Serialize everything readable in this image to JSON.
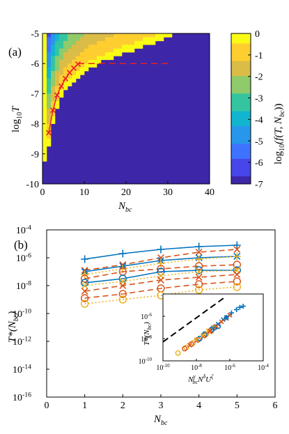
{
  "chart_data": [
    {
      "panel": "a",
      "type": "heatmap",
      "panel_label": "(a)",
      "xlabel": "N",
      "xlabel_sub": "bc",
      "ylabel": "log",
      "ylabel_sub": "10",
      "ylabel_var": "T",
      "xlim": [
        0,
        40
      ],
      "ylim": [
        -10,
        -5
      ],
      "xticks": [
        "0",
        "10",
        "20",
        "30",
        "40"
      ],
      "yticks": [
        "-5",
        "-6",
        "-7",
        "-8",
        "-9",
        "-10"
      ],
      "colorbar": {
        "label": "log",
        "label_sub": "10",
        "label_expr": "(f(T, N",
        "label_expr_sub": "bc",
        "label_close": "))",
        "lim": [
          -7,
          0
        ],
        "ticks": [
          "0",
          "-1",
          "-2",
          "-3",
          "-4",
          "-5",
          "-6",
          "-7"
        ],
        "colors": [
          "#3e26a8",
          "#4746eb",
          "#3e73fe",
          "#2797eb",
          "#12b5cf",
          "#34c5a0",
          "#8fca6b",
          "#dbbc47",
          "#fece31",
          "#f9fb15"
        ]
      },
      "boundary": [
        [
          1,
          -9.2
        ],
        [
          2,
          -8.3
        ],
        [
          3,
          -7.7
        ],
        [
          4,
          -7.3
        ],
        [
          5,
          -7.0
        ],
        [
          6,
          -6.8
        ],
        [
          8,
          -6.5
        ],
        [
          10,
          -6.3
        ],
        [
          12,
          -6.1
        ],
        [
          15,
          -5.9
        ],
        [
          18,
          -5.75
        ],
        [
          22,
          -5.55
        ],
        [
          26,
          -5.35
        ],
        [
          30,
          -5.15
        ],
        [
          32,
          -5.0
        ]
      ],
      "red_curve": {
        "x": [
          1.5,
          2.5,
          3.5,
          4.5,
          5.5,
          6.5,
          7.5,
          8.5
        ],
        "y": [
          -8.3,
          -7.55,
          -7.05,
          -6.75,
          -6.5,
          -6.3,
          -6.15,
          -6.02
        ]
      },
      "red_dashed": {
        "x": [
          8.5,
          30
        ],
        "y": [
          -6,
          -6
        ]
      }
    },
    {
      "panel": "b",
      "type": "line",
      "panel_label": "(b)",
      "xlabel": "N",
      "xlabel_sub": "bc",
      "ylabel": "T*(N",
      "ylabel_sub": "bc",
      "ylabel_close": ")",
      "xlim": [
        0,
        6
      ],
      "ylim_log10": [
        -16,
        -4
      ],
      "xticks": [
        "0",
        "1",
        "2",
        "3",
        "4",
        "5",
        "6"
      ],
      "yticks": [
        "10",
        "10",
        "10",
        "10",
        "10",
        "10",
        "10"
      ],
      "ytick_exps": [
        "-4",
        "-6",
        "-8",
        "-10",
        "-12",
        "-14",
        "-16"
      ],
      "x": [
        1,
        2,
        3,
        4,
        5
      ],
      "series": [
        {
          "color": "#0072bd",
          "dash": "solid",
          "marker": "plus",
          "log10": [
            -6.1,
            -5.7,
            -5.4,
            -5.2,
            -5.1
          ]
        },
        {
          "color": "#d95319",
          "dash": "dash",
          "marker": "x",
          "log10": [
            -6.9,
            -6.5,
            -6.0,
            -5.6,
            -5.4
          ]
        },
        {
          "color": "#0072bd",
          "dash": "solid",
          "marker": "x",
          "log10": [
            -7.0,
            -6.6,
            -6.2,
            -6.0,
            -5.9
          ]
        },
        {
          "color": "#edb120",
          "dash": "dot",
          "marker": "plus",
          "log10": [
            -7.2,
            -6.8,
            -6.4,
            -6.1,
            -5.9
          ]
        },
        {
          "color": "#d95319",
          "dash": "dash",
          "marker": "circle",
          "log10": [
            -7.5,
            -7.0,
            -6.8,
            -6.6,
            -6.5
          ]
        },
        {
          "color": "#0072bd",
          "dash": "solid",
          "marker": "circle",
          "log10": [
            -7.8,
            -7.5,
            -7.0,
            -6.9,
            -6.9
          ]
        },
        {
          "color": "#edb120",
          "dash": "dot",
          "marker": "x",
          "log10": [
            -8.0,
            -7.7,
            -7.3,
            -7.0,
            -6.9
          ]
        },
        {
          "color": "#d95319",
          "dash": "dash",
          "marker": "x",
          "log10": [
            -8.4,
            -8.0,
            -7.6,
            -7.4,
            -7.2
          ]
        },
        {
          "color": "#d95319",
          "dash": "dash",
          "marker": "circle",
          "log10": [
            -8.9,
            -8.6,
            -8.2,
            -7.9,
            -7.7
          ]
        },
        {
          "color": "#edb120",
          "dash": "dot",
          "marker": "circle",
          "log10": [
            -9.3,
            -9.0,
            -8.7,
            -8.3,
            -8.1
          ]
        }
      ],
      "inset": {
        "xlim_log10": [
          -10,
          -4
        ],
        "ylim_log10": [
          -10,
          -4
        ],
        "xticks": [
          "10",
          "10",
          "10",
          "10"
        ],
        "xtick_exps": [
          "-10",
          "-8",
          "-6",
          "-4"
        ],
        "yticks": [
          "10",
          "10",
          "10"
        ],
        "ytick_exps": [
          "-6",
          "-8",
          "-10"
        ],
        "ylabel": "T*(N",
        "ylabel_sub": "bc",
        "ylabel_close": ")",
        "xlabel": "N",
        "xlabel_sup1": "γ",
        "xlabel_sub1": "bc",
        "xlabel_mid": "N",
        "xlabel_sup2": "δ",
        "xlabel_end": "U",
        "xlabel_sup3": "ζ",
        "dashed_line": {
          "x_log10": [
            -10,
            -6.3
          ],
          "y_log10": [
            -8.3,
            -4.3
          ]
        },
        "points": [
          {
            "color": "#edb120",
            "marker": "circle",
            "xy": [
              [
                -9.1,
                -9.3
              ],
              [
                -8.6,
                -8.8
              ],
              [
                -8.2,
                -8.4
              ],
              [
                -7.8,
                -8.0
              ],
              [
                -7.4,
                -7.6
              ]
            ]
          },
          {
            "color": "#d95319",
            "marker": "circle",
            "xy": [
              [
                -8.7,
                -8.9
              ],
              [
                -8.3,
                -8.5
              ],
              [
                -7.9,
                -8.1
              ],
              [
                -7.5,
                -7.7
              ],
              [
                -7.1,
                -7.3
              ]
            ]
          },
          {
            "color": "#d95319",
            "marker": "x",
            "xy": [
              [
                -8.4,
                -8.6
              ],
              [
                -8.0,
                -8.2
              ],
              [
                -7.6,
                -7.8
              ],
              [
                -7.2,
                -7.4
              ],
              [
                -6.9,
                -7.0
              ]
            ]
          },
          {
            "color": "#0072bd",
            "marker": "circle",
            "xy": [
              [
                -7.8,
                -8.0
              ],
              [
                -7.5,
                -7.6
              ],
              [
                -7.1,
                -7.2
              ],
              [
                -6.9,
                -7.0
              ],
              [
                -6.7,
                -6.9
              ]
            ]
          },
          {
            "color": "#edb120",
            "marker": "x",
            "xy": [
              [
                -8.0,
                -8.1
              ],
              [
                -7.6,
                -7.7
              ],
              [
                -7.3,
                -7.3
              ],
              [
                -7.0,
                -7.0
              ],
              [
                -6.8,
                -6.9
              ]
            ]
          },
          {
            "color": "#0072bd",
            "marker": "x",
            "xy": [
              [
                -7.0,
                -7.1
              ],
              [
                -6.7,
                -6.7
              ],
              [
                -6.4,
                -6.3
              ],
              [
                -6.2,
                -6.1
              ],
              [
                -6.0,
                -5.9
              ]
            ]
          },
          {
            "color": "#d95319",
            "marker": "x",
            "xy": [
              [
                -7.2,
                -7.3
              ],
              [
                -6.8,
                -6.9
              ],
              [
                -6.5,
                -6.5
              ],
              [
                -6.2,
                -6.2
              ],
              [
                -6.0,
                -5.9
              ]
            ]
          },
          {
            "color": "#0072bd",
            "marker": "plus",
            "xy": [
              [
                -6.2,
                -6.1
              ],
              [
                -5.9,
                -5.7
              ],
              [
                -5.6,
                -5.4
              ],
              [
                -5.4,
                -5.2
              ],
              [
                -5.2,
                -5.1
              ]
            ]
          }
        ]
      }
    }
  ]
}
